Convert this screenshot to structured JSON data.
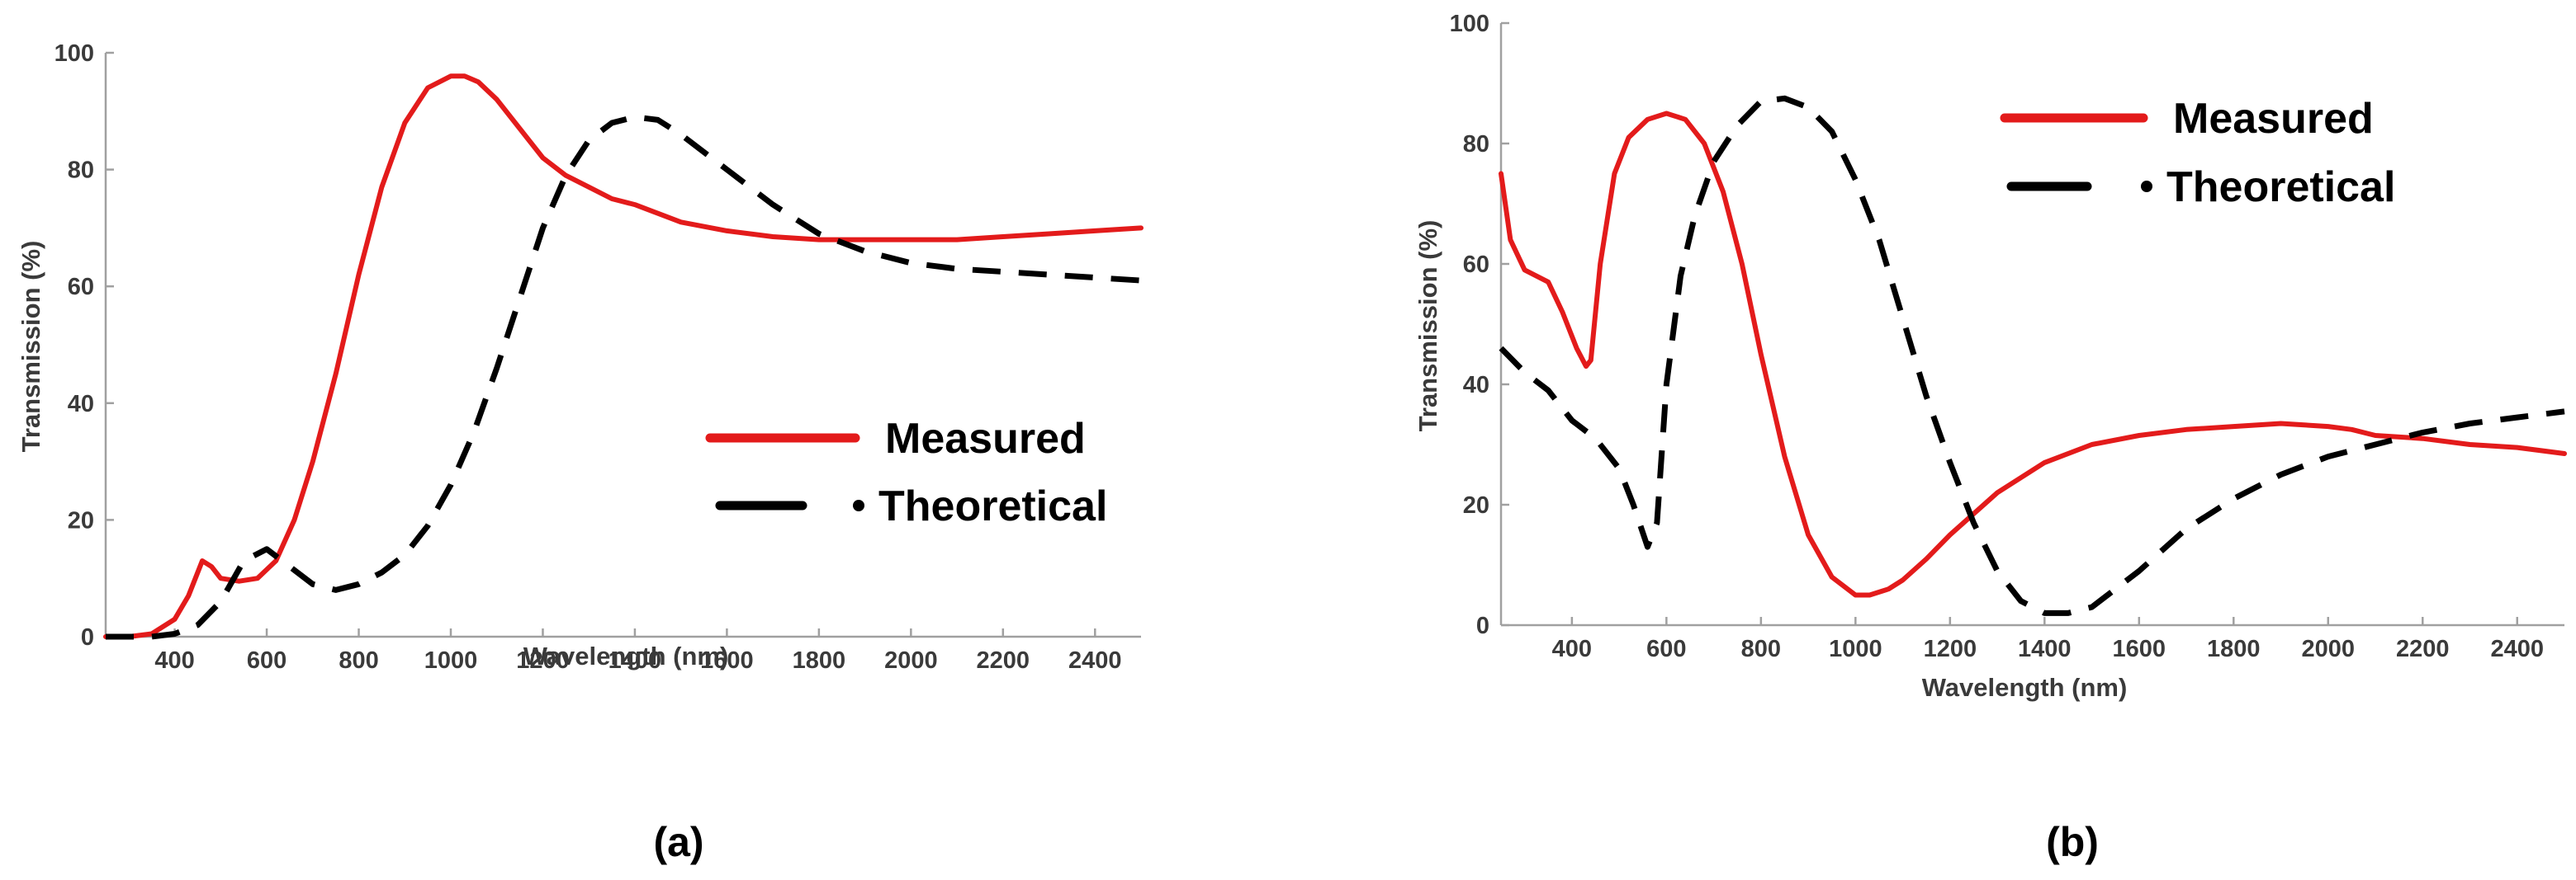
{
  "colors": {
    "measured": "#e31b1b",
    "theoretical": "#000000",
    "axis": "#a0a0a0",
    "text": "#3a3a3a"
  },
  "chart_data": [
    {
      "panel_label": "(a)",
      "type": "line",
      "title": "",
      "xlabel": "Wavelength (nm)",
      "ylabel": "Transmission (%)",
      "xlim": [
        250,
        2500
      ],
      "ylim": [
        0,
        100
      ],
      "xticks": [
        400,
        600,
        800,
        1000,
        1200,
        1400,
        1600,
        1800,
        2000,
        2200,
        2400
      ],
      "yticks": [
        0,
        20,
        40,
        60,
        80,
        100
      ],
      "legend": {
        "position": "center-right",
        "entries": [
          "Measured",
          "Theoretical"
        ]
      },
      "series": [
        {
          "name": "Measured",
          "color": "#e31b1b",
          "style": "solid",
          "x": [
            250,
            300,
            350,
            400,
            430,
            460,
            480,
            500,
            540,
            580,
            620,
            660,
            700,
            750,
            800,
            850,
            900,
            950,
            1000,
            1030,
            1060,
            1100,
            1150,
            1200,
            1250,
            1300,
            1350,
            1400,
            1450,
            1500,
            1600,
            1700,
            1800,
            1900,
            2000,
            2100,
            2200,
            2300,
            2400,
            2500
          ],
          "y": [
            0,
            0,
            0.5,
            3,
            7,
            13,
            12,
            10,
            9.5,
            10,
            13,
            20,
            30,
            45,
            62,
            77,
            88,
            94,
            96,
            96,
            95,
            92,
            87,
            82,
            79,
            77,
            75,
            74,
            72.5,
            71,
            69.5,
            68.5,
            68,
            68,
            68,
            68,
            68.5,
            69,
            69.5,
            70
          ]
        },
        {
          "name": "Theoretical",
          "color": "#000000",
          "style": "dashed",
          "x": [
            250,
            350,
            400,
            450,
            500,
            550,
            600,
            650,
            700,
            750,
            800,
            850,
            900,
            950,
            1000,
            1050,
            1100,
            1150,
            1200,
            1250,
            1300,
            1350,
            1400,
            1450,
            1500,
            1550,
            1600,
            1700,
            1800,
            1900,
            2000,
            2100,
            2200,
            2300,
            2400,
            2500
          ],
          "y": [
            0,
            0,
            0.5,
            2,
            6,
            13,
            15,
            12,
            9,
            8,
            9,
            11,
            14,
            19,
            26,
            35,
            46,
            58,
            70,
            79,
            85,
            88,
            89,
            88.5,
            86,
            83,
            80,
            74,
            69,
            66,
            64,
            63,
            62.5,
            62,
            61.5,
            61
          ]
        }
      ]
    },
    {
      "panel_label": "(b)",
      "type": "line",
      "title": "",
      "xlabel": "Wavelength (nm)",
      "ylabel": "Transmission (%)",
      "xlim": [
        250,
        2500
      ],
      "ylim": [
        0,
        100
      ],
      "xticks": [
        400,
        600,
        800,
        1000,
        1200,
        1400,
        1600,
        1800,
        2000,
        2200,
        2400
      ],
      "yticks": [
        0,
        20,
        40,
        60,
        80,
        100
      ],
      "legend": {
        "position": "top-right",
        "entries": [
          "Measured",
          "Theoretical"
        ]
      },
      "series": [
        {
          "name": "Measured",
          "color": "#e31b1b",
          "style": "solid",
          "x": [
            250,
            270,
            300,
            350,
            380,
            410,
            430,
            440,
            460,
            490,
            520,
            560,
            600,
            640,
            680,
            720,
            760,
            800,
            850,
            900,
            950,
            1000,
            1030,
            1070,
            1100,
            1150,
            1200,
            1300,
            1400,
            1500,
            1600,
            1700,
            1800,
            1900,
            2000,
            2050,
            2100,
            2200,
            2300,
            2400,
            2500
          ],
          "y": [
            75,
            64,
            59,
            57,
            52,
            46,
            43,
            44,
            60,
            75,
            81,
            84,
            85,
            84,
            80,
            72,
            60,
            45,
            28,
            15,
            8,
            5,
            5,
            6,
            7.5,
            11,
            15,
            22,
            27,
            30,
            31.5,
            32.5,
            33,
            33.5,
            33,
            32.5,
            31.5,
            31,
            30,
            29.5,
            28.5
          ]
        },
        {
          "name": "Theoretical",
          "color": "#000000",
          "style": "dashed",
          "x": [
            250,
            300,
            350,
            400,
            450,
            500,
            530,
            560,
            580,
            600,
            630,
            660,
            700,
            750,
            800,
            850,
            900,
            950,
            1000,
            1050,
            1100,
            1150,
            1200,
            1250,
            1300,
            1350,
            1400,
            1450,
            1500,
            1600,
            1700,
            1800,
            1900,
            2000,
            2100,
            2200,
            2300,
            2400,
            2500
          ],
          "y": [
            46,
            42,
            39,
            34,
            31,
            26,
            20,
            13,
            17,
            40,
            58,
            68,
            77,
            83,
            87,
            87.5,
            86,
            82,
            74,
            64,
            51,
            38,
            27,
            17,
            9,
            4,
            2,
            2,
            3,
            9,
            16,
            21,
            25,
            28,
            30,
            32,
            33.5,
            34.5,
            35.5
          ]
        }
      ]
    }
  ]
}
